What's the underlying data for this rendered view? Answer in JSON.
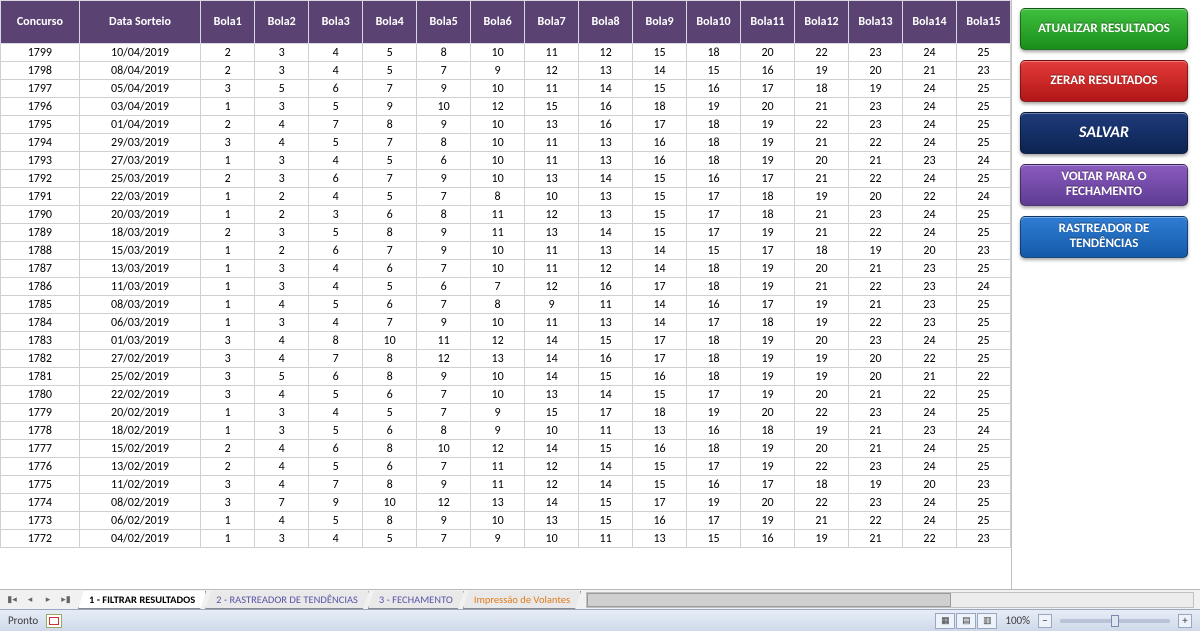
{
  "colors": {
    "header_bg": "#5a4272",
    "header_fg": "#ffffff",
    "grid_line": "#d0d0d0",
    "btn_green": "#28a428",
    "btn_red": "#d02424",
    "btn_navy": "#163166",
    "btn_purple": "#6f47a4",
    "btn_blue": "#1f6bc0"
  },
  "columns": [
    {
      "key": "concurso",
      "label": "Concurso",
      "cls": "concurso"
    },
    {
      "key": "data",
      "label": "Data Sorteio",
      "cls": "data"
    },
    {
      "key": "b1",
      "label": "Bola1",
      "cls": "bola"
    },
    {
      "key": "b2",
      "label": "Bola2",
      "cls": "bola"
    },
    {
      "key": "b3",
      "label": "Bola3",
      "cls": "bola"
    },
    {
      "key": "b4",
      "label": "Bola4",
      "cls": "bola"
    },
    {
      "key": "b5",
      "label": "Bola5",
      "cls": "bola"
    },
    {
      "key": "b6",
      "label": "Bola6",
      "cls": "bola"
    },
    {
      "key": "b7",
      "label": "Bola7",
      "cls": "bola"
    },
    {
      "key": "b8",
      "label": "Bola8",
      "cls": "bola"
    },
    {
      "key": "b9",
      "label": "Bola9",
      "cls": "bola"
    },
    {
      "key": "b10",
      "label": "Bola10",
      "cls": "bola"
    },
    {
      "key": "b11",
      "label": "Bola11",
      "cls": "bola"
    },
    {
      "key": "b12",
      "label": "Bola12",
      "cls": "bola"
    },
    {
      "key": "b13",
      "label": "Bola13",
      "cls": "bola"
    },
    {
      "key": "b14",
      "label": "Bola14",
      "cls": "bola"
    },
    {
      "key": "b15",
      "label": "Bola15",
      "cls": "bola"
    }
  ],
  "rows": [
    {
      "concurso": 1799,
      "data": "10/04/2019",
      "b1": 2,
      "b2": 3,
      "b3": 4,
      "b4": 5,
      "b5": 8,
      "b6": 10,
      "b7": 11,
      "b8": 12,
      "b9": 15,
      "b10": 18,
      "b11": 20,
      "b12": 22,
      "b13": 23,
      "b14": 24,
      "b15": 25
    },
    {
      "concurso": 1798,
      "data": "08/04/2019",
      "b1": 2,
      "b2": 3,
      "b3": 4,
      "b4": 5,
      "b5": 7,
      "b6": 9,
      "b7": 12,
      "b8": 13,
      "b9": 14,
      "b10": 15,
      "b11": 16,
      "b12": 19,
      "b13": 20,
      "b14": 21,
      "b15": 23
    },
    {
      "concurso": 1797,
      "data": "05/04/2019",
      "b1": 3,
      "b2": 5,
      "b3": 6,
      "b4": 7,
      "b5": 9,
      "b6": 10,
      "b7": 11,
      "b8": 14,
      "b9": 15,
      "b10": 16,
      "b11": 17,
      "b12": 18,
      "b13": 19,
      "b14": 24,
      "b15": 25
    },
    {
      "concurso": 1796,
      "data": "03/04/2019",
      "b1": 1,
      "b2": 3,
      "b3": 5,
      "b4": 9,
      "b5": 10,
      "b6": 12,
      "b7": 15,
      "b8": 16,
      "b9": 18,
      "b10": 19,
      "b11": 20,
      "b12": 21,
      "b13": 23,
      "b14": 24,
      "b15": 25
    },
    {
      "concurso": 1795,
      "data": "01/04/2019",
      "b1": 2,
      "b2": 4,
      "b3": 7,
      "b4": 8,
      "b5": 9,
      "b6": 10,
      "b7": 13,
      "b8": 16,
      "b9": 17,
      "b10": 18,
      "b11": 19,
      "b12": 22,
      "b13": 23,
      "b14": 24,
      "b15": 25
    },
    {
      "concurso": 1794,
      "data": "29/03/2019",
      "b1": 3,
      "b2": 4,
      "b3": 5,
      "b4": 7,
      "b5": 8,
      "b6": 10,
      "b7": 11,
      "b8": 13,
      "b9": 16,
      "b10": 18,
      "b11": 19,
      "b12": 21,
      "b13": 22,
      "b14": 24,
      "b15": 25
    },
    {
      "concurso": 1793,
      "data": "27/03/2019",
      "b1": 1,
      "b2": 3,
      "b3": 4,
      "b4": 5,
      "b5": 6,
      "b6": 10,
      "b7": 11,
      "b8": 13,
      "b9": 16,
      "b10": 18,
      "b11": 19,
      "b12": 20,
      "b13": 21,
      "b14": 23,
      "b15": 24
    },
    {
      "concurso": 1792,
      "data": "25/03/2019",
      "b1": 2,
      "b2": 3,
      "b3": 6,
      "b4": 7,
      "b5": 9,
      "b6": 10,
      "b7": 13,
      "b8": 14,
      "b9": 15,
      "b10": 16,
      "b11": 17,
      "b12": 21,
      "b13": 22,
      "b14": 24,
      "b15": 25
    },
    {
      "concurso": 1791,
      "data": "22/03/2019",
      "b1": 1,
      "b2": 2,
      "b3": 4,
      "b4": 5,
      "b5": 7,
      "b6": 8,
      "b7": 10,
      "b8": 13,
      "b9": 15,
      "b10": 17,
      "b11": 18,
      "b12": 19,
      "b13": 20,
      "b14": 22,
      "b15": 24
    },
    {
      "concurso": 1790,
      "data": "20/03/2019",
      "b1": 1,
      "b2": 2,
      "b3": 3,
      "b4": 6,
      "b5": 8,
      "b6": 11,
      "b7": 12,
      "b8": 13,
      "b9": 15,
      "b10": 17,
      "b11": 18,
      "b12": 21,
      "b13": 23,
      "b14": 24,
      "b15": 25
    },
    {
      "concurso": 1789,
      "data": "18/03/2019",
      "b1": 2,
      "b2": 3,
      "b3": 5,
      "b4": 8,
      "b5": 9,
      "b6": 11,
      "b7": 13,
      "b8": 14,
      "b9": 15,
      "b10": 17,
      "b11": 19,
      "b12": 21,
      "b13": 22,
      "b14": 24,
      "b15": 25
    },
    {
      "concurso": 1788,
      "data": "15/03/2019",
      "b1": 1,
      "b2": 2,
      "b3": 6,
      "b4": 7,
      "b5": 9,
      "b6": 10,
      "b7": 11,
      "b8": 13,
      "b9": 14,
      "b10": 15,
      "b11": 17,
      "b12": 18,
      "b13": 19,
      "b14": 20,
      "b15": 23
    },
    {
      "concurso": 1787,
      "data": "13/03/2019",
      "b1": 1,
      "b2": 3,
      "b3": 4,
      "b4": 6,
      "b5": 7,
      "b6": 10,
      "b7": 11,
      "b8": 12,
      "b9": 14,
      "b10": 18,
      "b11": 19,
      "b12": 20,
      "b13": 21,
      "b14": 23,
      "b15": 25
    },
    {
      "concurso": 1786,
      "data": "11/03/2019",
      "b1": 1,
      "b2": 3,
      "b3": 4,
      "b4": 5,
      "b5": 6,
      "b6": 7,
      "b7": 12,
      "b8": 16,
      "b9": 17,
      "b10": 18,
      "b11": 19,
      "b12": 21,
      "b13": 22,
      "b14": 23,
      "b15": 24
    },
    {
      "concurso": 1785,
      "data": "08/03/2019",
      "b1": 1,
      "b2": 4,
      "b3": 5,
      "b4": 6,
      "b5": 7,
      "b6": 8,
      "b7": 9,
      "b8": 11,
      "b9": 14,
      "b10": 16,
      "b11": 17,
      "b12": 19,
      "b13": 21,
      "b14": 23,
      "b15": 25
    },
    {
      "concurso": 1784,
      "data": "06/03/2019",
      "b1": 1,
      "b2": 3,
      "b3": 4,
      "b4": 7,
      "b5": 9,
      "b6": 10,
      "b7": 11,
      "b8": 13,
      "b9": 14,
      "b10": 17,
      "b11": 18,
      "b12": 19,
      "b13": 22,
      "b14": 23,
      "b15": 25
    },
    {
      "concurso": 1783,
      "data": "01/03/2019",
      "b1": 3,
      "b2": 4,
      "b3": 8,
      "b4": 10,
      "b5": 11,
      "b6": 12,
      "b7": 14,
      "b8": 15,
      "b9": 17,
      "b10": 18,
      "b11": 19,
      "b12": 20,
      "b13": 23,
      "b14": 24,
      "b15": 25
    },
    {
      "concurso": 1782,
      "data": "27/02/2019",
      "b1": 3,
      "b2": 4,
      "b3": 7,
      "b4": 8,
      "b5": 12,
      "b6": 13,
      "b7": 14,
      "b8": 16,
      "b9": 17,
      "b10": 18,
      "b11": 19,
      "b12": 19,
      "b13": 20,
      "b14": 22,
      "b15": 25
    },
    {
      "concurso": 1781,
      "data": "25/02/2019",
      "b1": 3,
      "b2": 5,
      "b3": 6,
      "b4": 8,
      "b5": 9,
      "b6": 10,
      "b7": 14,
      "b8": 15,
      "b9": 16,
      "b10": 18,
      "b11": 19,
      "b12": 19,
      "b13": 20,
      "b14": 21,
      "b15": 22
    },
    {
      "concurso": 1780,
      "data": "22/02/2019",
      "b1": 3,
      "b2": 4,
      "b3": 5,
      "b4": 6,
      "b5": 7,
      "b6": 10,
      "b7": 13,
      "b8": 14,
      "b9": 15,
      "b10": 17,
      "b11": 19,
      "b12": 20,
      "b13": 21,
      "b14": 22,
      "b15": 25
    },
    {
      "concurso": 1779,
      "data": "20/02/2019",
      "b1": 1,
      "b2": 3,
      "b3": 4,
      "b4": 5,
      "b5": 7,
      "b6": 9,
      "b7": 15,
      "b8": 17,
      "b9": 18,
      "b10": 19,
      "b11": 20,
      "b12": 22,
      "b13": 23,
      "b14": 24,
      "b15": 25
    },
    {
      "concurso": 1778,
      "data": "18/02/2019",
      "b1": 1,
      "b2": 3,
      "b3": 5,
      "b4": 6,
      "b5": 8,
      "b6": 9,
      "b7": 10,
      "b8": 11,
      "b9": 13,
      "b10": 16,
      "b11": 18,
      "b12": 19,
      "b13": 21,
      "b14": 23,
      "b15": 24
    },
    {
      "concurso": 1777,
      "data": "15/02/2019",
      "b1": 2,
      "b2": 4,
      "b3": 6,
      "b4": 8,
      "b5": 10,
      "b6": 12,
      "b7": 14,
      "b8": 15,
      "b9": 16,
      "b10": 18,
      "b11": 19,
      "b12": 20,
      "b13": 21,
      "b14": 24,
      "b15": 25
    },
    {
      "concurso": 1776,
      "data": "13/02/2019",
      "b1": 2,
      "b2": 4,
      "b3": 5,
      "b4": 6,
      "b5": 7,
      "b6": 11,
      "b7": 12,
      "b8": 14,
      "b9": 15,
      "b10": 17,
      "b11": 19,
      "b12": 22,
      "b13": 23,
      "b14": 24,
      "b15": 25
    },
    {
      "concurso": 1775,
      "data": "11/02/2019",
      "b1": 3,
      "b2": 4,
      "b3": 7,
      "b4": 8,
      "b5": 9,
      "b6": 11,
      "b7": 12,
      "b8": 14,
      "b9": 15,
      "b10": 16,
      "b11": 17,
      "b12": 18,
      "b13": 19,
      "b14": 20,
      "b15": 23
    },
    {
      "concurso": 1774,
      "data": "08/02/2019",
      "b1": 3,
      "b2": 7,
      "b3": 9,
      "b4": 10,
      "b5": 12,
      "b6": 13,
      "b7": 14,
      "b8": 15,
      "b9": 17,
      "b10": 19,
      "b11": 20,
      "b12": 22,
      "b13": 23,
      "b14": 24,
      "b15": 25
    },
    {
      "concurso": 1773,
      "data": "06/02/2019",
      "b1": 1,
      "b2": 4,
      "b3": 5,
      "b4": 8,
      "b5": 9,
      "b6": 10,
      "b7": 13,
      "b8": 15,
      "b9": 16,
      "b10": 17,
      "b11": 19,
      "b12": 21,
      "b13": 22,
      "b14": 24,
      "b15": 25
    },
    {
      "concurso": 1772,
      "data": "04/02/2019",
      "b1": 1,
      "b2": 3,
      "b3": 4,
      "b4": 5,
      "b5": 7,
      "b6": 9,
      "b7": 10,
      "b8": 11,
      "b9": 13,
      "b10": 15,
      "b11": 16,
      "b12": 19,
      "b13": 21,
      "b14": 22,
      "b15": 23
    }
  ],
  "buttons": {
    "atualizar": "ATUALIZAR RESULTADOS",
    "zerar": "ZERAR RESULTADOS",
    "salvar": "SALVAR",
    "voltar": "VOLTAR PARA O FECHAMENTO",
    "rastreador": "RASTREADOR DE TENDÊNCIAS"
  },
  "sheet_tabs": {
    "active": "1 - FILTRAR RESULTADOS",
    "t2": "2 - RASTREADOR DE TENDÊNCIAS",
    "t3": "3 - FECHAMENTO",
    "t4": "Impressão de Volantes"
  },
  "status": {
    "ready": "Pronto",
    "zoom_pct": "100%",
    "zoom_plus": "+",
    "zoom_minus": "−"
  },
  "nav_glyphs": {
    "first": "▮◂",
    "prev": "◂",
    "next": "▸",
    "last": "▸▮"
  }
}
